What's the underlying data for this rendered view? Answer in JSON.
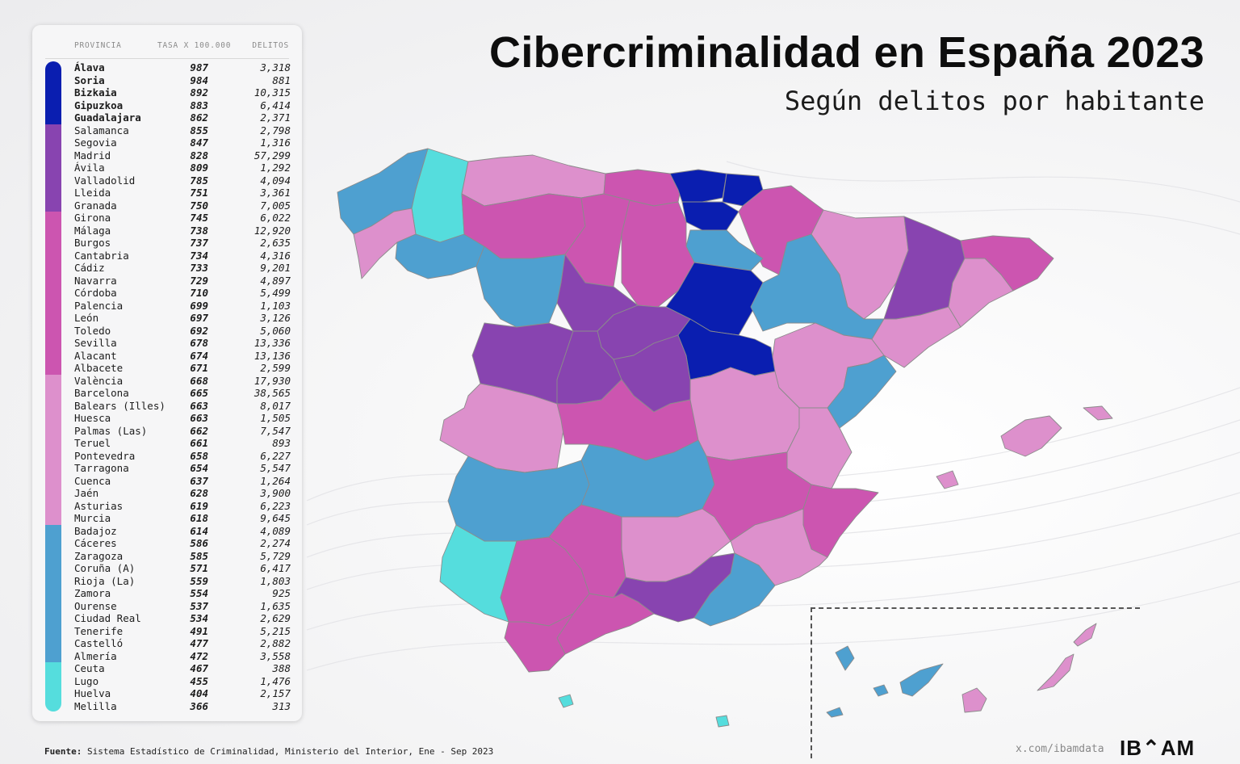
{
  "title": "Cibercriminalidad en España 2023",
  "subtitle": "Según delitos por habitante",
  "table": {
    "headers": {
      "province": "PROVINCIA",
      "rate": "TASA X 100.000",
      "crimes": "DELITOS"
    },
    "rows": [
      {
        "name": "Álava",
        "rate": "987",
        "crimes": "3,318"
      },
      {
        "name": "Soria",
        "rate": "984",
        "crimes": "881"
      },
      {
        "name": "Bizkaia",
        "rate": "892",
        "crimes": "10,315"
      },
      {
        "name": "Gipuzkoa",
        "rate": "883",
        "crimes": "6,414"
      },
      {
        "name": "Guadalajara",
        "rate": "862",
        "crimes": "2,371"
      },
      {
        "name": "Salamanca",
        "rate": "855",
        "crimes": "2,798"
      },
      {
        "name": "Segovia",
        "rate": "847",
        "crimes": "1,316"
      },
      {
        "name": "Madrid",
        "rate": "828",
        "crimes": "57,299"
      },
      {
        "name": "Ávila",
        "rate": "809",
        "crimes": "1,292"
      },
      {
        "name": "Valladolid",
        "rate": "785",
        "crimes": "4,094"
      },
      {
        "name": "Lleida",
        "rate": "751",
        "crimes": "3,361"
      },
      {
        "name": "Granada",
        "rate": "750",
        "crimes": "7,005"
      },
      {
        "name": "Girona",
        "rate": "745",
        "crimes": "6,022"
      },
      {
        "name": "Málaga",
        "rate": "738",
        "crimes": "12,920"
      },
      {
        "name": "Burgos",
        "rate": "737",
        "crimes": "2,635"
      },
      {
        "name": "Cantabria",
        "rate": "734",
        "crimes": "4,316"
      },
      {
        "name": "Cádiz",
        "rate": "733",
        "crimes": "9,201"
      },
      {
        "name": "Navarra",
        "rate": "729",
        "crimes": "4,897"
      },
      {
        "name": "Córdoba",
        "rate": "710",
        "crimes": "5,499"
      },
      {
        "name": "Palencia",
        "rate": "699",
        "crimes": "1,103"
      },
      {
        "name": "León",
        "rate": "697",
        "crimes": "3,126"
      },
      {
        "name": "Toledo",
        "rate": "692",
        "crimes": "5,060"
      },
      {
        "name": "Sevilla",
        "rate": "678",
        "crimes": "13,336"
      },
      {
        "name": "Alacant",
        "rate": "674",
        "crimes": "13,136"
      },
      {
        "name": "Albacete",
        "rate": "671",
        "crimes": "2,599"
      },
      {
        "name": "València",
        "rate": "668",
        "crimes": "17,930"
      },
      {
        "name": "Barcelona",
        "rate": "665",
        "crimes": "38,565"
      },
      {
        "name": "Balears (Illes)",
        "rate": "663",
        "crimes": "8,017"
      },
      {
        "name": "Huesca",
        "rate": "663",
        "crimes": "1,505"
      },
      {
        "name": "Palmas (Las)",
        "rate": "662",
        "crimes": "7,547"
      },
      {
        "name": "Teruel",
        "rate": "661",
        "crimes": "893"
      },
      {
        "name": "Pontevedra",
        "rate": "658",
        "crimes": "6,227"
      },
      {
        "name": "Tarragona",
        "rate": "654",
        "crimes": "5,547"
      },
      {
        "name": "Cuenca",
        "rate": "637",
        "crimes": "1,264"
      },
      {
        "name": "Jaén",
        "rate": "628",
        "crimes": "3,900"
      },
      {
        "name": "Asturias",
        "rate": "619",
        "crimes": "6,223"
      },
      {
        "name": "Murcia",
        "rate": "618",
        "crimes": "9,645"
      },
      {
        "name": "Badajoz",
        "rate": "614",
        "crimes": "4,089"
      },
      {
        "name": "Cáceres",
        "rate": "586",
        "crimes": "2,274"
      },
      {
        "name": "Zaragoza",
        "rate": "585",
        "crimes": "5,729"
      },
      {
        "name": "Coruña (A)",
        "rate": "571",
        "crimes": "6,417"
      },
      {
        "name": "Rioja (La)",
        "rate": "559",
        "crimes": "1,803"
      },
      {
        "name": "Zamora",
        "rate": "554",
        "crimes": "925"
      },
      {
        "name": "Ourense",
        "rate": "537",
        "crimes": "1,635"
      },
      {
        "name": "Ciudad Real",
        "rate": "534",
        "crimes": "2,629"
      },
      {
        "name": "Tenerife",
        "rate": "491",
        "crimes": "5,215"
      },
      {
        "name": "Castelló",
        "rate": "477",
        "crimes": "2,882"
      },
      {
        "name": "Almería",
        "rate": "472",
        "crimes": "3,558"
      },
      {
        "name": "Ceuta",
        "rate": "467",
        "crimes": "388"
      },
      {
        "name": "Lugo",
        "rate": "455",
        "crimes": "1,476"
      },
      {
        "name": "Huelva",
        "rate": "404",
        "crimes": "2,157"
      },
      {
        "name": "Melilla",
        "rate": "366",
        "crimes": "313"
      }
    ]
  },
  "legend_bands": [
    {
      "color": "#0a1eb0",
      "count": 5
    },
    {
      "color": "#8844b0",
      "count": 7
    },
    {
      "color": "#cc55b0",
      "count": 13
    },
    {
      "color": "#dd90cc",
      "count": 12
    },
    {
      "color": "#4ea0d0",
      "count": 11
    },
    {
      "color": "#55dddd",
      "count": 4
    }
  ],
  "colors": {
    "tier1": "#0a1eb0",
    "tier2": "#8844b0",
    "tier3": "#cc55b0",
    "tier4": "#dd90cc",
    "tier5": "#4ea0d0",
    "tier6": "#55dddd"
  },
  "source_label": "Fuente:",
  "source_text": "Sistema Estadístico de Criminalidad, Ministerio del Interior, Ene - Sep 2023",
  "handle": "x.com/ibamdata",
  "logo": "IB⌃AM"
}
